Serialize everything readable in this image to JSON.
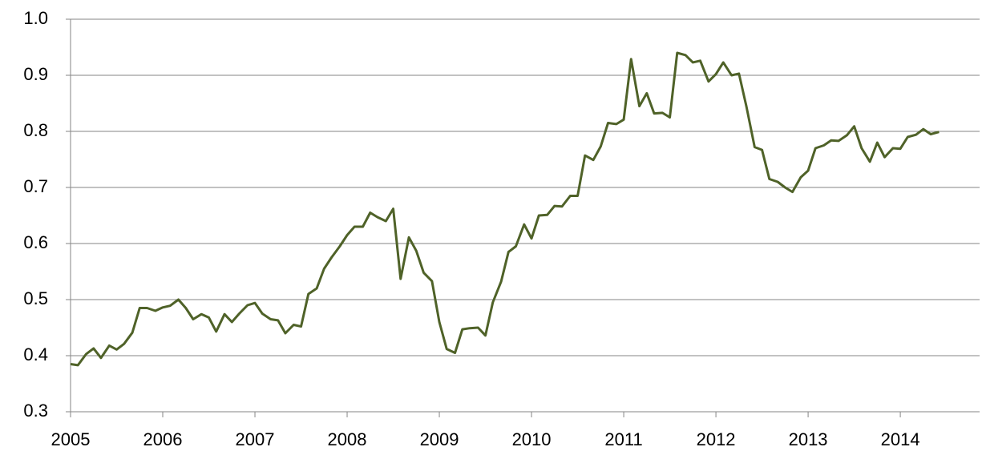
{
  "chart_data": {
    "type": "line",
    "x": [
      2005.0,
      2005.08,
      2005.17,
      2005.25,
      2005.33,
      2005.42,
      2005.5,
      2005.58,
      2005.67,
      2005.75,
      2005.83,
      2005.92,
      2006.0,
      2006.08,
      2006.17,
      2006.25,
      2006.33,
      2006.42,
      2006.5,
      2006.58,
      2006.67,
      2006.75,
      2006.83,
      2006.92,
      2007.0,
      2007.08,
      2007.17,
      2007.25,
      2007.33,
      2007.42,
      2007.5,
      2007.58,
      2007.67,
      2007.75,
      2007.83,
      2007.92,
      2008.0,
      2008.08,
      2008.17,
      2008.25,
      2008.33,
      2008.42,
      2008.5,
      2008.58,
      2008.67,
      2008.75,
      2008.83,
      2008.92,
      2009.0,
      2009.08,
      2009.17,
      2009.25,
      2009.33,
      2009.42,
      2009.5,
      2009.58,
      2009.67,
      2009.75,
      2009.83,
      2009.92,
      2010.0,
      2010.08,
      2010.17,
      2010.25,
      2010.33,
      2010.42,
      2010.5,
      2010.58,
      2010.67,
      2010.75,
      2010.83,
      2010.92,
      2011.0,
      2011.08,
      2011.17,
      2011.25,
      2011.33,
      2011.42,
      2011.5,
      2011.58,
      2011.67,
      2011.75,
      2011.83,
      2011.92,
      2012.0,
      2012.08,
      2012.17,
      2012.25,
      2012.33,
      2012.42,
      2012.5,
      2012.58,
      2012.67,
      2012.75,
      2012.83,
      2012.92,
      2013.0,
      2013.08,
      2013.17,
      2013.25,
      2013.33,
      2013.42,
      2013.5,
      2013.58,
      2013.67,
      2013.75,
      2013.83,
      2013.92,
      2014.0,
      2014.08,
      2014.17,
      2014.25,
      2014.33,
      2014.42
    ],
    "series": [
      {
        "color": "#4f6228",
        "values": [
          0.385,
          0.383,
          0.403,
          0.413,
          0.396,
          0.418,
          0.411,
          0.421,
          0.441,
          0.485,
          0.485,
          0.48,
          0.486,
          0.489,
          0.5,
          0.485,
          0.465,
          0.474,
          0.468,
          0.443,
          0.474,
          0.46,
          0.475,
          0.49,
          0.494,
          0.475,
          0.465,
          0.463,
          0.44,
          0.455,
          0.452,
          0.51,
          0.52,
          0.555,
          0.575,
          0.595,
          0.615,
          0.63,
          0.63,
          0.655,
          0.647,
          0.64,
          0.662,
          0.537,
          0.611,
          0.587,
          0.548,
          0.533,
          0.46,
          0.412,
          0.405,
          0.447,
          0.449,
          0.45,
          0.436,
          0.495,
          0.532,
          0.585,
          0.595,
          0.634,
          0.609,
          0.65,
          0.651,
          0.667,
          0.666,
          0.685,
          0.685,
          0.757,
          0.749,
          0.773,
          0.815,
          0.813,
          0.821,
          0.929,
          0.845,
          0.868,
          0.832,
          0.833,
          0.825,
          0.94,
          0.936,
          0.923,
          0.926,
          0.889,
          0.902,
          0.923,
          0.9,
          0.903,
          0.845,
          0.772,
          0.767,
          0.715,
          0.71,
          0.7,
          0.692,
          0.718,
          0.73,
          0.77,
          0.775,
          0.784,
          0.783,
          0.793,
          0.809,
          0.77,
          0.746,
          0.78,
          0.754,
          0.77,
          0.769,
          0.79,
          0.794,
          0.804,
          0.795,
          0.799
        ]
      }
    ],
    "xlim": [
      2005,
      2014.86
    ],
    "xticks": [
      2005,
      2006,
      2007,
      2008,
      2009,
      2010,
      2011,
      2012,
      2013,
      2014
    ],
    "ylim": [
      0.3,
      1.0
    ],
    "yticks": [
      0.3,
      0.4,
      0.5,
      0.6,
      0.7,
      0.8,
      0.9,
      {
        "value": 1.0,
        "label": "1.0"
      }
    ],
    "grid": true
  }
}
